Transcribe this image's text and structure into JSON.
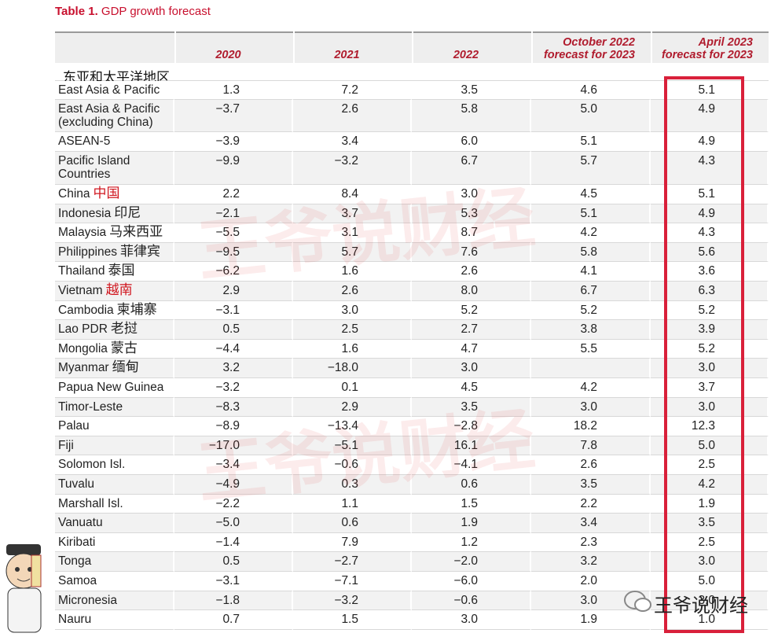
{
  "title": {
    "label": "Table 1.",
    "text": "GDP growth forecast"
  },
  "table": {
    "columns": [
      "2020",
      "2021",
      "2022",
      "October 2022 forecast for 2023",
      "April 2023 forecast for 2023"
    ],
    "annotation": "东亚和太平洋地区",
    "rows": [
      {
        "label": "East Asia & Pacific",
        "values": [
          "1.3",
          "7.2",
          "3.5",
          "4.6",
          "5.1"
        ]
      },
      {
        "label": "East Asia & Pacific (excluding China)",
        "values": [
          "−3.7",
          "2.6",
          "5.8",
          "5.0",
          "4.9"
        ]
      },
      {
        "label": "ASEAN-5",
        "values": [
          "−3.9",
          "3.4",
          "6.0",
          "5.1",
          "4.9"
        ]
      },
      {
        "label": "Pacific Island Countries",
        "values": [
          "−9.9",
          "−3.2",
          "6.7",
          "5.7",
          "4.3"
        ]
      },
      {
        "label": "China",
        "note": "中国",
        "note_color": "#d0161f",
        "values": [
          "2.2",
          "8.4",
          "3.0",
          "4.5",
          "5.1"
        ]
      },
      {
        "label": "Indonesia",
        "note": "印尼",
        "values": [
          "−2.1",
          "3.7",
          "5.3",
          "5.1",
          "4.9"
        ]
      },
      {
        "label": "Malaysia",
        "note": "马来西亚",
        "values": [
          "−5.5",
          "3.1",
          "8.7",
          "4.2",
          "4.3"
        ]
      },
      {
        "label": "Philippines",
        "note": "菲律宾",
        "values": [
          "−9.5",
          "5.7",
          "7.6",
          "5.8",
          "5.6"
        ]
      },
      {
        "label": "Thailand",
        "note": "泰国",
        "values": [
          "−6.2",
          "1.6",
          "2.6",
          "4.1",
          "3.6"
        ]
      },
      {
        "label": "Vietnam",
        "note": "越南",
        "note_color": "#d0161f",
        "values": [
          "2.9",
          "2.6",
          "8.0",
          "6.7",
          "6.3"
        ]
      },
      {
        "label": "Cambodia",
        "note": "柬埔寨",
        "values": [
          "−3.1",
          "3.0",
          "5.2",
          "5.2",
          "5.2"
        ]
      },
      {
        "label": "Lao PDR",
        "note": "老挝",
        "values": [
          "0.5",
          "2.5",
          "2.7",
          "3.8",
          "3.9"
        ]
      },
      {
        "label": "Mongolia",
        "note": "蒙古",
        "values": [
          "−4.4",
          "1.6",
          "4.7",
          "5.5",
          "5.2"
        ]
      },
      {
        "label": "Myanmar",
        "note": "缅甸",
        "values": [
          "3.2",
          "−18.0",
          "3.0",
          null,
          "3.0"
        ]
      },
      {
        "label": "Papua New Guinea",
        "values": [
          "−3.2",
          "0.1",
          "4.5",
          "4.2",
          "3.7"
        ]
      },
      {
        "label": "Timor-Leste",
        "values": [
          "−8.3",
          "2.9",
          "3.5",
          "3.0",
          "3.0"
        ]
      },
      {
        "label": "Palau",
        "values": [
          "−8.9",
          "−13.4",
          "−2.8",
          "18.2",
          "12.3"
        ]
      },
      {
        "label": "Fiji",
        "values": [
          "−17.0",
          "−5.1",
          "16.1",
          "7.8",
          "5.0"
        ]
      },
      {
        "label": "Solomon Isl.",
        "values": [
          "−3.4",
          "−0.6",
          "−4.1",
          "2.6",
          "2.5"
        ]
      },
      {
        "label": "Tuvalu",
        "values": [
          "−4.9",
          "0.3",
          "0.6",
          "3.5",
          "4.2"
        ]
      },
      {
        "label": "Marshall Isl.",
        "values": [
          "−2.2",
          "1.1",
          "1.5",
          "2.2",
          "1.9"
        ]
      },
      {
        "label": "Vanuatu",
        "values": [
          "−5.0",
          "0.6",
          "1.9",
          "3.4",
          "3.5"
        ]
      },
      {
        "label": "Kiribati",
        "values": [
          "−1.4",
          "7.9",
          "1.2",
          "2.3",
          "2.5"
        ]
      },
      {
        "label": "Tonga",
        "values": [
          "0.5",
          "−2.7",
          "−2.0",
          "3.2",
          "3.0"
        ]
      },
      {
        "label": "Samoa",
        "values": [
          "−3.1",
          "−7.1",
          "−6.0",
          "2.0",
          "5.0"
        ]
      },
      {
        "label": "Micronesia",
        "values": [
          "−1.8",
          "−3.2",
          "−0.6",
          "3.0",
          "3.0"
        ]
      },
      {
        "label": "Nauru",
        "values": [
          "0.7",
          "1.5",
          "3.0",
          "1.9",
          "1.0"
        ]
      }
    ]
  },
  "watermark": "王爷说财经",
  "brand": "王爷说财经"
}
